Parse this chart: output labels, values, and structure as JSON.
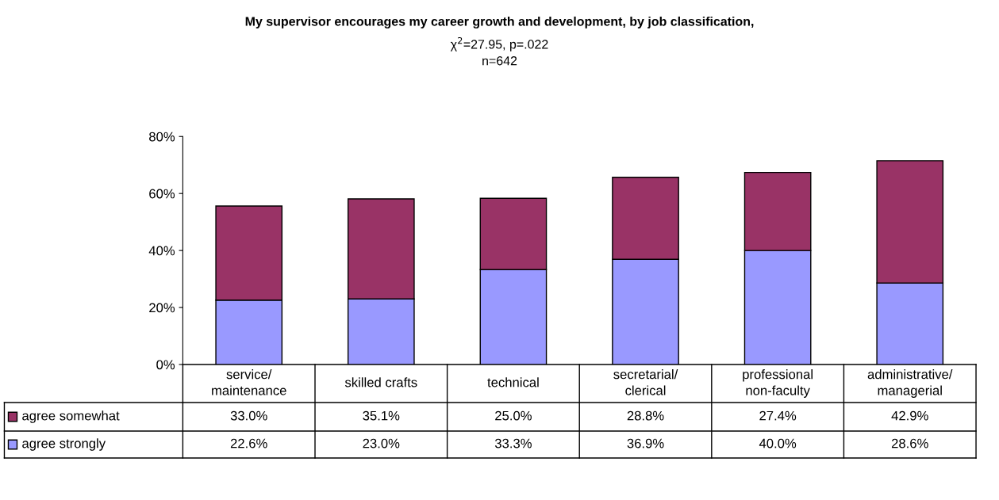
{
  "chart_data": {
    "type": "bar",
    "stacked": true,
    "title": "My supervisor encourages my career growth and development, by job classification,",
    "subtitle": "χ$^{2}$=27.95, p=.022\nn=642",
    "categories": [
      "service/\nmaintenance",
      "skilled crafts",
      "technical",
      "secretarial/\nclerical",
      "professional\nnon-faculty",
      "administrative/\nmanagerial"
    ],
    "series": [
      {
        "name": "agree strongly",
        "color": "#9999ff",
        "values": [
          22.6,
          23.0,
          33.3,
          36.9,
          40.0,
          28.6
        ],
        "value_labels": [
          "22.6%",
          "23.0%",
          "33.3%",
          "36.9%",
          "40.0%",
          "28.6%"
        ]
      },
      {
        "name": "agree somewhat",
        "color": "#993366",
        "values": [
          33.0,
          35.1,
          25.0,
          28.8,
          27.4,
          42.9
        ],
        "value_labels": [
          "33.0%",
          "35.1%",
          "25.0%",
          "28.8%",
          "27.4%",
          "42.9%"
        ]
      }
    ],
    "ylim": [
      0,
      80
    ],
    "yticks": [
      {
        "value": 0,
        "label": "0%"
      },
      {
        "value": 20,
        "label": "20%"
      },
      {
        "value": 40,
        "label": "40%"
      },
      {
        "value": 60,
        "label": "60%"
      },
      {
        "value": 80,
        "label": "80%"
      }
    ],
    "grid": false,
    "legend": "bottom left"
  }
}
